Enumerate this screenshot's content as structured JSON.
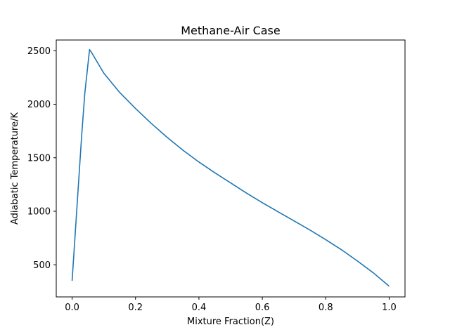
{
  "chart_data": {
    "type": "line",
    "title": "Methane-Air Case",
    "xlabel": "Mixture Fraction(Z)",
    "ylabel": "Adiabatic Temperature/K",
    "xlim": [
      -0.05,
      1.05
    ],
    "ylim": [
      200,
      2600
    ],
    "grid": false,
    "x_ticks": [
      0.0,
      0.2,
      0.4,
      0.6,
      0.8,
      1.0
    ],
    "x_tick_labels": [
      "0.0",
      "0.2",
      "0.4",
      "0.6",
      "0.8",
      "1.0"
    ],
    "y_ticks": [
      500,
      1000,
      1500,
      2000,
      2500
    ],
    "y_tick_labels": [
      "500",
      "1000",
      "1500",
      "2000",
      "2500"
    ],
    "series": [
      {
        "color": "#1f77b4",
        "x": [
          0.0,
          0.01,
          0.02,
          0.03,
          0.04,
          0.055,
          0.06,
          0.08,
          0.1,
          0.15,
          0.2,
          0.25,
          0.3,
          0.35,
          0.4,
          0.45,
          0.5,
          0.55,
          0.6,
          0.65,
          0.7,
          0.75,
          0.8,
          0.85,
          0.9,
          0.95,
          1.0
        ],
        "y": [
          350,
          800,
          1250,
          1700,
          2100,
          2510,
          2490,
          2390,
          2290,
          2110,
          1960,
          1820,
          1690,
          1570,
          1460,
          1360,
          1265,
          1170,
          1080,
          995,
          910,
          825,
          735,
          640,
          535,
          425,
          300
        ]
      }
    ]
  }
}
